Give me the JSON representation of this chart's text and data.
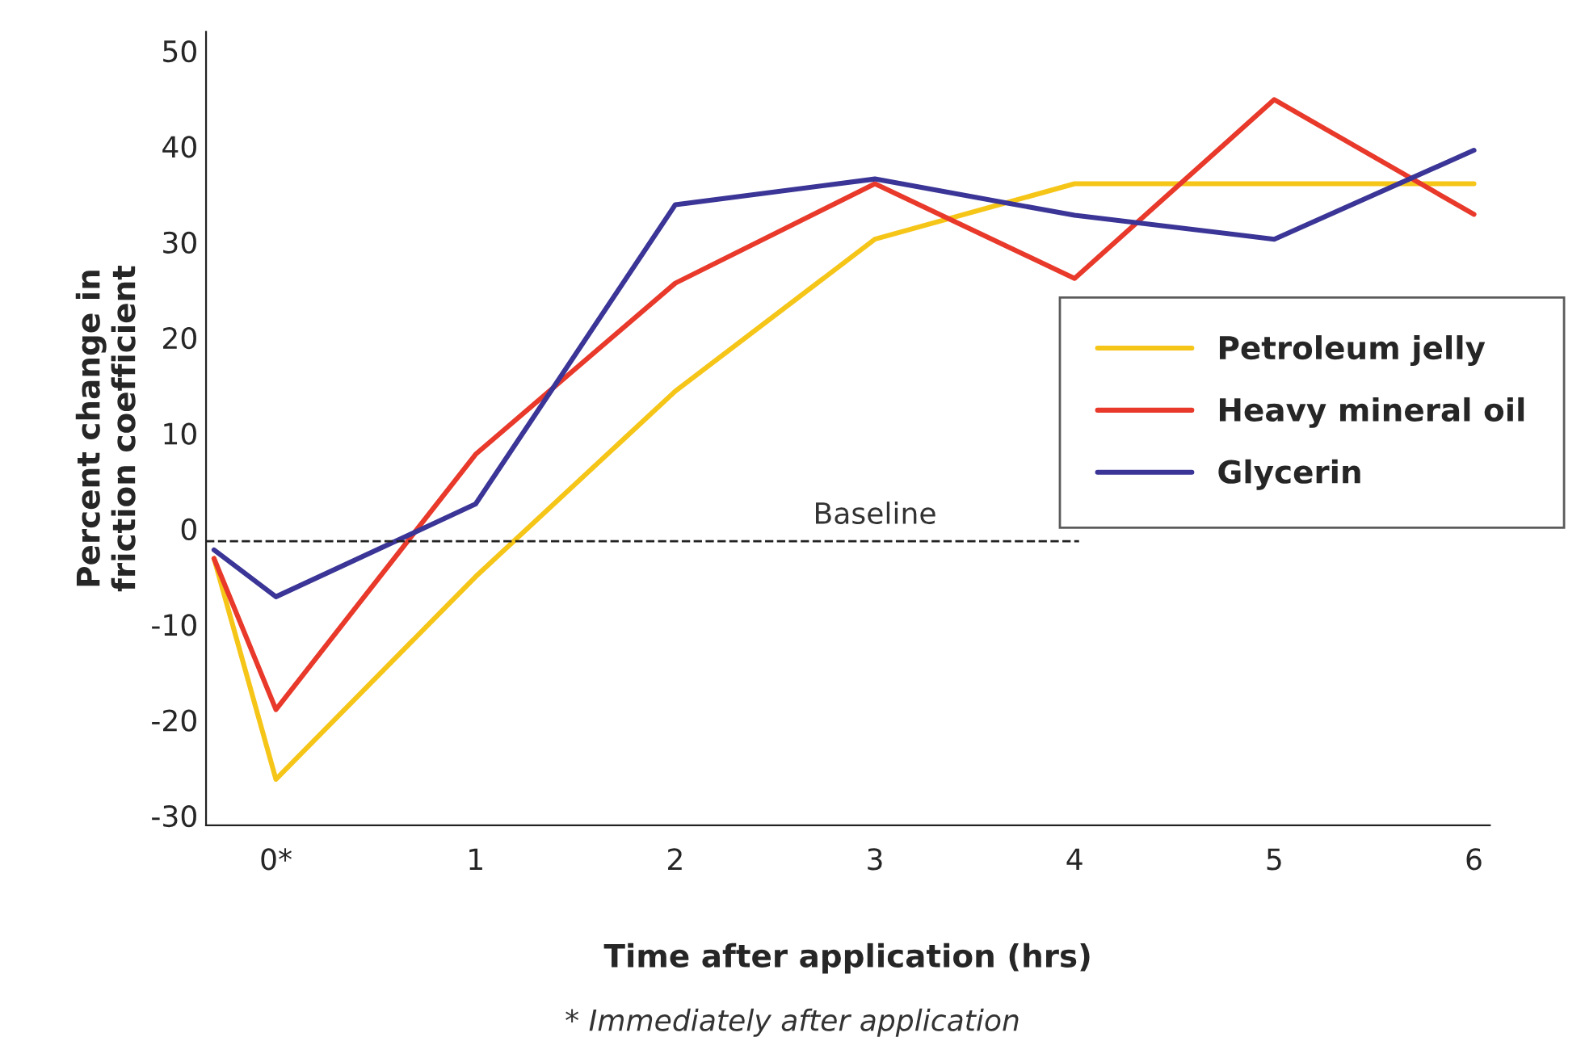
{
  "chart_data": {
    "type": "line",
    "xlabel": "Time after application (hrs)",
    "ylabel": "Percent change in\nfriction coefficient",
    "x": [
      -0.31,
      0,
      1,
      2,
      3,
      4,
      5,
      6
    ],
    "series": [
      {
        "name": "Petroleum jelly",
        "color": "#f5c518",
        "values": [
          -3.1,
          -26.2,
          -5,
          14.4,
          30.3,
          36.1,
          36.1,
          36.1
        ]
      },
      {
        "name": "Heavy mineral oil",
        "color": "#e8392b",
        "values": [
          -3.1,
          -18.9,
          7.8,
          25.7,
          36.1,
          26.2,
          44.9,
          32.9
        ]
      },
      {
        "name": "Glycerin",
        "color": "#3a3596",
        "values": [
          -2.2,
          -7.1,
          2.6,
          33.9,
          36.6,
          32.8,
          30.3,
          39.6
        ]
      }
    ],
    "xlim": [
      -0.35,
      6.08
    ],
    "xticks": [
      {
        "value": 0,
        "label": "0*"
      },
      1,
      2,
      3,
      4,
      5,
      6
    ],
    "ylim": [
      -31,
      52
    ],
    "yticks": [
      -30,
      -20,
      -10,
      0,
      10,
      20,
      30,
      40,
      50
    ],
    "ref_lines": [
      {
        "axis": "y",
        "value": -1.3,
        "label": "Baseline",
        "color": "#222222",
        "line_style": "dashed"
      }
    ],
    "annotations": [
      "* Immediately after application"
    ],
    "legend": "right",
    "grid": false,
    "marker": "none",
    "line_style": "solid"
  }
}
